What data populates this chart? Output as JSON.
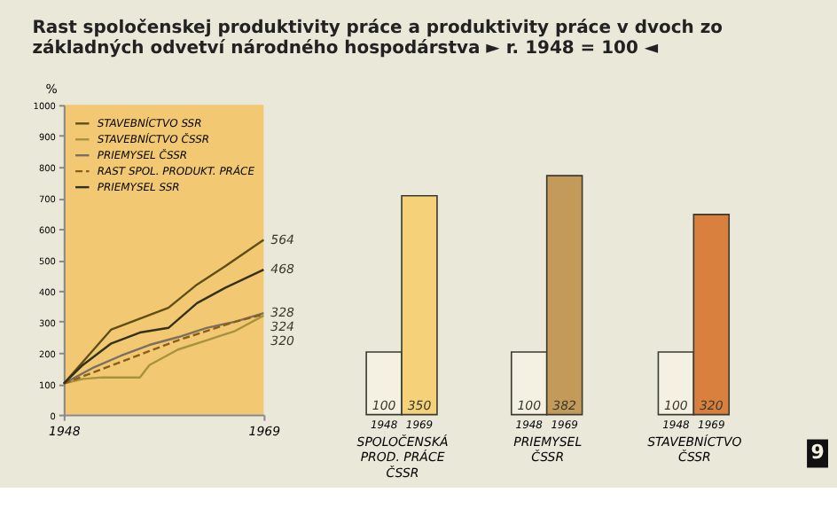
{
  "chart_data": [
    {
      "type": "line",
      "title": "Rast spoločenskej produktivity práce a produktivity práce v dvoch zo základných odvetví národného hospodárstva ► r. 1948 = 100 ◄",
      "ylabel": "%",
      "x": [
        1948,
        1950,
        1953,
        1956,
        1959,
        1962,
        1965,
        1969
      ],
      "xlim": [
        1948,
        1969
      ],
      "xticks": [
        1948,
        1969
      ],
      "ylim": [
        0,
        1000
      ],
      "yticks": [
        0,
        100,
        200,
        300,
        400,
        500,
        600,
        700,
        800,
        900,
        1000
      ],
      "grid": false,
      "legend": "top left",
      "series": [
        {
          "name": "STAVEBNÍCTVO SSR",
          "color": "#5e4f16",
          "values": [
            100,
            170,
            275,
            310,
            345,
            420,
            480,
            564
          ],
          "value_labels": [
            null,
            null,
            null,
            null,
            null,
            null,
            null,
            "564"
          ]
        },
        {
          "name": "STAVEBNÍCTVO ČSSR",
          "color": "#a8923e",
          "x": [
            1948,
            1950,
            1952,
            1956,
            1957,
            1960,
            1963,
            1966,
            1969
          ],
          "values": [
            100,
            115,
            120,
            120,
            160,
            210,
            240,
            270,
            320
          ],
          "value_labels": [
            null,
            null,
            null,
            null,
            null,
            null,
            null,
            null,
            "320"
          ]
        },
        {
          "name": "PRIEMYSEL ČSSR",
          "color": "#7a7060",
          "x": [
            1948,
            1951,
            1954,
            1957,
            1960,
            1963,
            1966,
            1969
          ],
          "values": [
            100,
            150,
            190,
            225,
            250,
            280,
            300,
            328
          ],
          "value_labels": [
            null,
            null,
            null,
            null,
            null,
            null,
            null,
            "328"
          ]
        },
        {
          "name": "RAST SPOL. PRODUKT. PRÁCE",
          "color": "#8a5e18",
          "line_style": "dashed",
          "x": [
            1948,
            1951,
            1954,
            1957,
            1960,
            1963,
            1966,
            1969
          ],
          "values": [
            100,
            135,
            170,
            205,
            240,
            270,
            300,
            324
          ],
          "value_labels": [
            null,
            null,
            null,
            null,
            null,
            null,
            null,
            "324"
          ]
        },
        {
          "name": "PRIEMYSEL SSR",
          "color": "#33301c",
          "values": [
            100,
            160,
            230,
            265,
            280,
            360,
            410,
            468
          ],
          "value_labels": [
            null,
            null,
            null,
            null,
            null,
            null,
            null,
            "468"
          ]
        }
      ]
    },
    {
      "type": "bar",
      "categories": [
        "1948",
        "1969"
      ],
      "values": [
        100,
        350
      ],
      "colors": [
        "#f4f1e2",
        "#f5d27a"
      ],
      "data_labels": true,
      "tick_labels": "x",
      "xlabel": "SPOLOČENSKÁ PROD. PRÁCE ČSSR"
    },
    {
      "type": "bar",
      "categories": [
        "1948",
        "1969"
      ],
      "values": [
        100,
        382
      ],
      "colors": [
        "#f4f1e2",
        "#c49a5a"
      ],
      "data_labels": true,
      "tick_labels": "x",
      "xlabel": "PRIEMYSEL ČSSR"
    },
    {
      "type": "bar",
      "categories": [
        "1948",
        "1969"
      ],
      "values": [
        100,
        320
      ],
      "colors": [
        "#f4f1e2",
        "#d9803e"
      ],
      "data_labels": true,
      "tick_labels": "x",
      "xlabel": "STAVEBNÍCTVO ČSSR",
      "annotations": [
        "9"
      ]
    }
  ]
}
